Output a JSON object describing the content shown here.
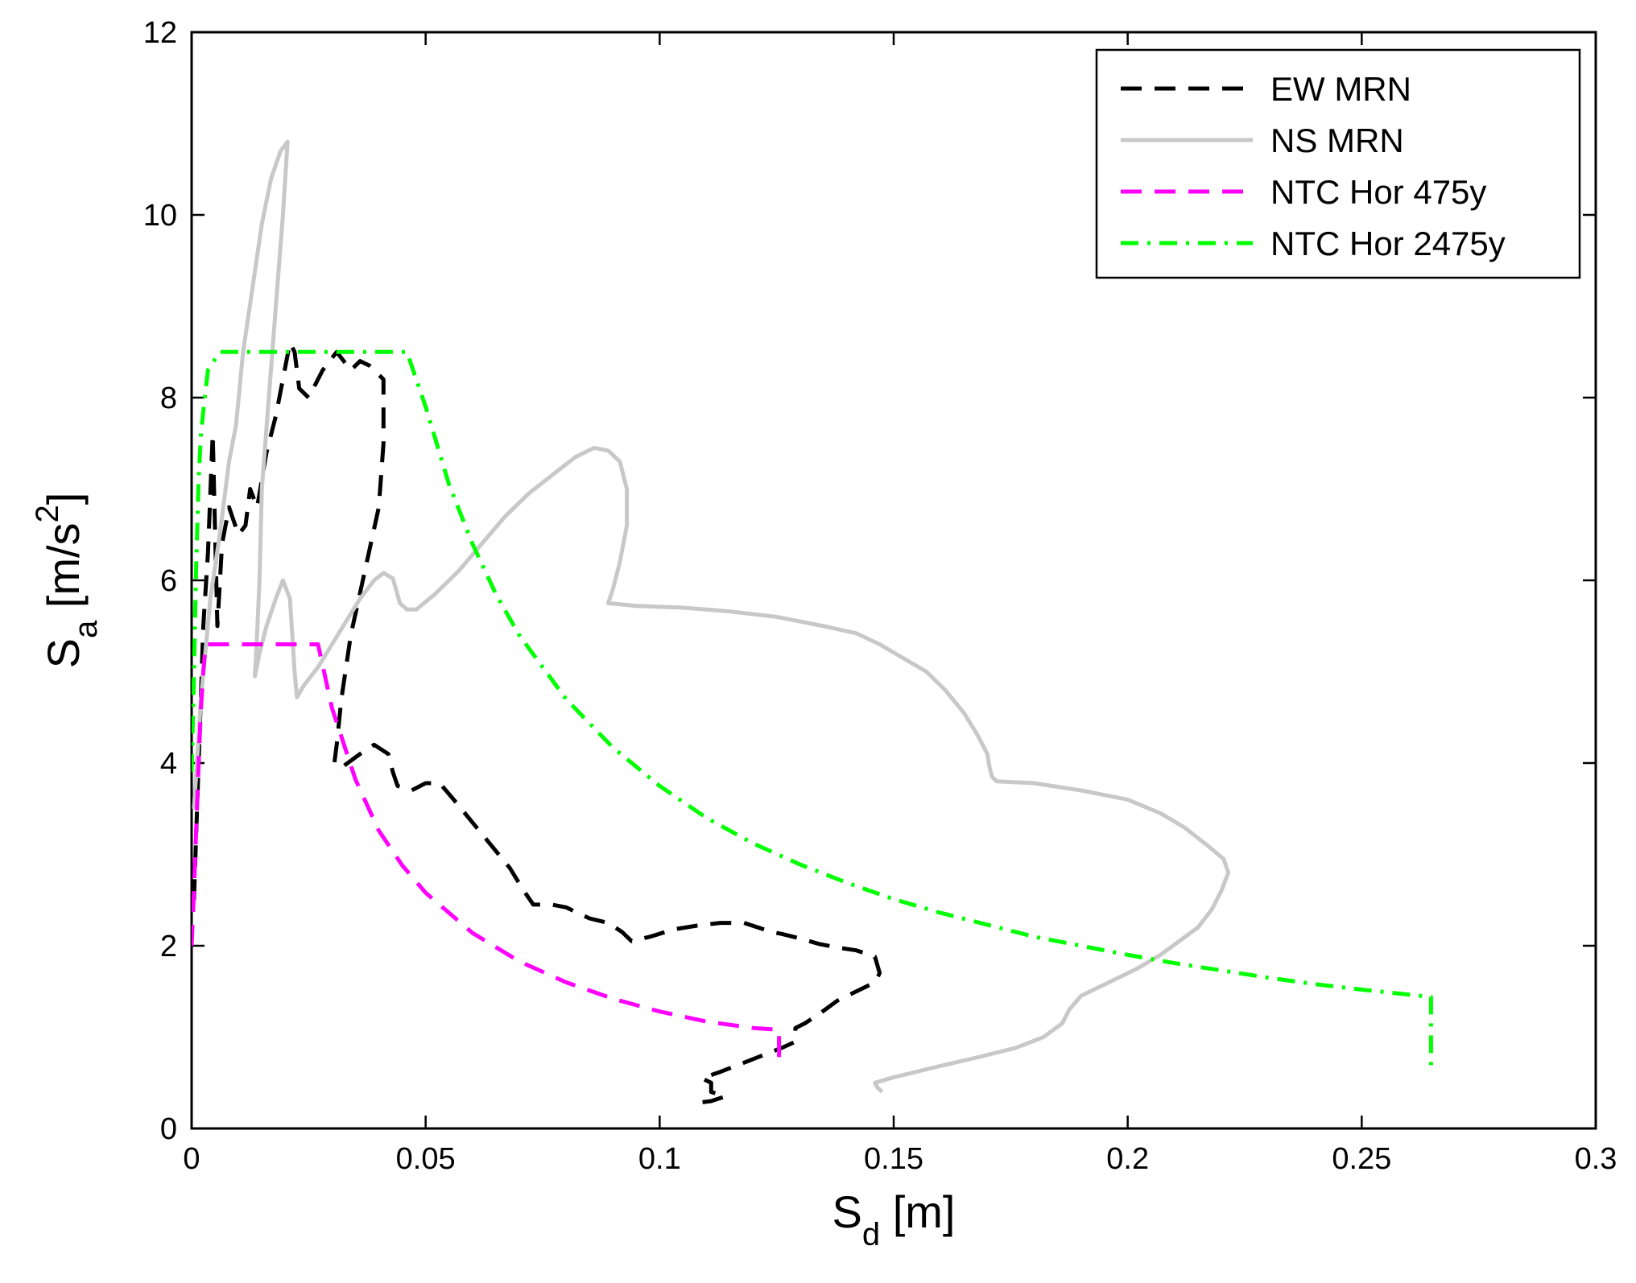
{
  "chart_data": {
    "type": "line",
    "title": "",
    "xlabel": {
      "main": "S",
      "sub": "d",
      "unit": " [m]"
    },
    "ylabel": {
      "main": "S",
      "sub": "a",
      "unit_before": " [m/s",
      "sup": "2",
      "unit_after": "]"
    },
    "xlim": [
      0,
      0.3
    ],
    "ylim": [
      0,
      12
    ],
    "x_ticks": [
      0,
      0.05,
      0.1,
      0.15,
      0.2,
      0.25,
      0.3
    ],
    "x_tick_labels": [
      "0",
      "0.05",
      "0.1",
      "0.15",
      "0.2",
      "0.25",
      "0.3"
    ],
    "y_ticks": [
      0,
      2,
      4,
      6,
      8,
      10,
      12
    ],
    "y_tick_labels": [
      "0",
      "2",
      "4",
      "6",
      "8",
      "10",
      "12"
    ],
    "grid": false,
    "legend_position": "top-right",
    "series": [
      {
        "name": "EW MRN",
        "color": "#000000",
        "style": "dashed",
        "points": [
          [
            0.0005,
            2.5
          ],
          [
            0.0015,
            4.0
          ],
          [
            0.0025,
            5.5
          ],
          [
            0.0035,
            6.3
          ],
          [
            0.0045,
            7.6
          ],
          [
            0.0055,
            5.5
          ],
          [
            0.0065,
            6.4
          ],
          [
            0.008,
            6.8
          ],
          [
            0.01,
            6.5
          ],
          [
            0.0115,
            6.6
          ],
          [
            0.0125,
            7.0
          ],
          [
            0.014,
            6.8
          ],
          [
            0.016,
            7.4
          ],
          [
            0.018,
            7.8
          ],
          [
            0.021,
            8.6
          ],
          [
            0.022,
            8.5
          ],
          [
            0.023,
            8.1
          ],
          [
            0.025,
            8.0
          ],
          [
            0.028,
            8.3
          ],
          [
            0.031,
            8.5
          ],
          [
            0.034,
            8.3
          ],
          [
            0.036,
            8.4
          ],
          [
            0.038,
            8.35
          ],
          [
            0.041,
            8.2
          ],
          [
            0.041,
            7.5
          ],
          [
            0.04,
            6.8
          ],
          [
            0.037,
            6.1
          ],
          [
            0.034,
            5.4
          ],
          [
            0.032,
            4.7
          ],
          [
            0.031,
            4.2
          ],
          [
            0.0305,
            4.0
          ],
          [
            0.032,
            3.95
          ],
          [
            0.036,
            4.1
          ],
          [
            0.039,
            4.2
          ],
          [
            0.042,
            4.1
          ],
          [
            0.043,
            3.9
          ],
          [
            0.044,
            3.75
          ],
          [
            0.047,
            3.7
          ],
          [
            0.05,
            3.78
          ],
          [
            0.053,
            3.78
          ],
          [
            0.056,
            3.6
          ],
          [
            0.06,
            3.35
          ],
          [
            0.064,
            3.1
          ],
          [
            0.068,
            2.85
          ],
          [
            0.071,
            2.6
          ],
          [
            0.073,
            2.45
          ],
          [
            0.077,
            2.45
          ],
          [
            0.08,
            2.42
          ],
          [
            0.085,
            2.3
          ],
          [
            0.089,
            2.25
          ],
          [
            0.092,
            2.15
          ],
          [
            0.094,
            2.05
          ],
          [
            0.098,
            2.1
          ],
          [
            0.103,
            2.18
          ],
          [
            0.108,
            2.22
          ],
          [
            0.113,
            2.25
          ],
          [
            0.118,
            2.25
          ],
          [
            0.121,
            2.2
          ],
          [
            0.124,
            2.15
          ],
          [
            0.126,
            2.13
          ],
          [
            0.13,
            2.08
          ],
          [
            0.134,
            2.02
          ],
          [
            0.138,
            1.98
          ],
          [
            0.142,
            1.95
          ],
          [
            0.146,
            1.88
          ],
          [
            0.147,
            1.7
          ],
          [
            0.146,
            1.6
          ],
          [
            0.142,
            1.5
          ],
          [
            0.138,
            1.4
          ],
          [
            0.134,
            1.25
          ],
          [
            0.131,
            1.15
          ],
          [
            0.129,
            1.1
          ],
          [
            0.129,
            0.95
          ],
          [
            0.126,
            0.88
          ],
          [
            0.122,
            0.8
          ],
          [
            0.118,
            0.72
          ],
          [
            0.113,
            0.62
          ],
          [
            0.109,
            0.55
          ],
          [
            0.111,
            0.5
          ],
          [
            0.111,
            0.4
          ],
          [
            0.114,
            0.35
          ],
          [
            0.111,
            0.3
          ],
          [
            0.108,
            0.28
          ]
        ]
      },
      {
        "name": "NS MRN",
        "color": "#c8c8c8",
        "style": "solid",
        "points": [
          [
            0.0005,
            3.5
          ],
          [
            0.002,
            4.7
          ],
          [
            0.004,
            5.8
          ],
          [
            0.006,
            6.5
          ],
          [
            0.008,
            7.3
          ],
          [
            0.0095,
            7.7
          ],
          [
            0.011,
            8.5
          ],
          [
            0.013,
            9.2
          ],
          [
            0.015,
            9.9
          ],
          [
            0.017,
            10.4
          ],
          [
            0.019,
            10.7
          ],
          [
            0.0205,
            10.8
          ],
          [
            0.0195,
            10.0
          ],
          [
            0.018,
            9.0
          ],
          [
            0.0165,
            8.0
          ],
          [
            0.015,
            7.0
          ],
          [
            0.0145,
            6.0
          ],
          [
            0.0138,
            5.2
          ],
          [
            0.0135,
            4.95
          ],
          [
            0.0145,
            5.2
          ],
          [
            0.016,
            5.5
          ],
          [
            0.018,
            5.8
          ],
          [
            0.0195,
            6.0
          ],
          [
            0.021,
            5.8
          ],
          [
            0.022,
            5.0
          ],
          [
            0.0225,
            4.72
          ],
          [
            0.024,
            4.85
          ],
          [
            0.027,
            5.05
          ],
          [
            0.03,
            5.3
          ],
          [
            0.033,
            5.55
          ],
          [
            0.036,
            5.8
          ],
          [
            0.039,
            6.0
          ],
          [
            0.041,
            6.08
          ],
          [
            0.043,
            6.02
          ],
          [
            0.0445,
            5.75
          ],
          [
            0.046,
            5.68
          ],
          [
            0.048,
            5.68
          ],
          [
            0.052,
            5.85
          ],
          [
            0.057,
            6.1
          ],
          [
            0.062,
            6.4
          ],
          [
            0.067,
            6.7
          ],
          [
            0.072,
            6.95
          ],
          [
            0.077,
            7.15
          ],
          [
            0.082,
            7.35
          ],
          [
            0.086,
            7.45
          ],
          [
            0.089,
            7.42
          ],
          [
            0.0915,
            7.3
          ],
          [
            0.093,
            7.0
          ],
          [
            0.093,
            6.6
          ],
          [
            0.0915,
            6.2
          ],
          [
            0.09,
            5.9
          ],
          [
            0.089,
            5.75
          ],
          [
            0.095,
            5.72
          ],
          [
            0.105,
            5.7
          ],
          [
            0.115,
            5.66
          ],
          [
            0.125,
            5.6
          ],
          [
            0.135,
            5.5
          ],
          [
            0.142,
            5.42
          ],
          [
            0.147,
            5.3
          ],
          [
            0.152,
            5.15
          ],
          [
            0.157,
            5.0
          ],
          [
            0.161,
            4.8
          ],
          [
            0.165,
            4.55
          ],
          [
            0.168,
            4.3
          ],
          [
            0.17,
            4.1
          ],
          [
            0.1705,
            3.95
          ],
          [
            0.171,
            3.85
          ],
          [
            0.172,
            3.8
          ],
          [
            0.18,
            3.78
          ],
          [
            0.19,
            3.7
          ],
          [
            0.2,
            3.6
          ],
          [
            0.207,
            3.45
          ],
          [
            0.212,
            3.3
          ],
          [
            0.217,
            3.1
          ],
          [
            0.2205,
            2.95
          ],
          [
            0.2215,
            2.8
          ],
          [
            0.22,
            2.6
          ],
          [
            0.218,
            2.4
          ],
          [
            0.215,
            2.2
          ],
          [
            0.211,
            2.05
          ],
          [
            0.207,
            1.9
          ],
          [
            0.202,
            1.75
          ],
          [
            0.196,
            1.6
          ],
          [
            0.19,
            1.45
          ],
          [
            0.1875,
            1.3
          ],
          [
            0.186,
            1.15
          ],
          [
            0.182,
            1.0
          ],
          [
            0.176,
            0.88
          ],
          [
            0.168,
            0.78
          ],
          [
            0.158,
            0.66
          ],
          [
            0.15,
            0.56
          ],
          [
            0.146,
            0.5
          ],
          [
            0.1465,
            0.45
          ],
          [
            0.1475,
            0.4
          ]
        ]
      },
      {
        "name": "NTC Hor 475y",
        "color": "#ff00ff",
        "style": "dashed",
        "points": [
          [
            0.0,
            2.0
          ],
          [
            0.0005,
            2.6
          ],
          [
            0.001,
            3.3
          ],
          [
            0.0015,
            4.0
          ],
          [
            0.002,
            4.6
          ],
          [
            0.0025,
            5.0
          ],
          [
            0.003,
            5.3
          ],
          [
            0.006,
            5.3
          ],
          [
            0.01,
            5.3
          ],
          [
            0.015,
            5.3
          ],
          [
            0.02,
            5.3
          ],
          [
            0.025,
            5.3
          ],
          [
            0.027,
            5.3
          ],
          [
            0.03,
            4.6
          ],
          [
            0.035,
            3.82
          ],
          [
            0.04,
            3.26
          ],
          [
            0.045,
            2.88
          ],
          [
            0.05,
            2.58
          ],
          [
            0.06,
            2.14
          ],
          [
            0.07,
            1.83
          ],
          [
            0.08,
            1.6
          ],
          [
            0.09,
            1.42
          ],
          [
            0.1,
            1.28
          ],
          [
            0.11,
            1.17
          ],
          [
            0.12,
            1.1
          ],
          [
            0.1255,
            1.08
          ],
          [
            0.1255,
            0.9
          ],
          [
            0.1255,
            0.7
          ]
        ]
      },
      {
        "name": "NTC Hor 2475y",
        "color": "#00ff00",
        "style": "dashdot",
        "points": [
          [
            0.0,
            3.9
          ],
          [
            0.0005,
            5.0
          ],
          [
            0.001,
            6.2
          ],
          [
            0.0015,
            7.1
          ],
          [
            0.002,
            7.6
          ],
          [
            0.0028,
            8.0
          ],
          [
            0.0035,
            8.3
          ],
          [
            0.006,
            8.5
          ],
          [
            0.01,
            8.5
          ],
          [
            0.02,
            8.5
          ],
          [
            0.03,
            8.5
          ],
          [
            0.04,
            8.5
          ],
          [
            0.046,
            8.5
          ],
          [
            0.05,
            7.9
          ],
          [
            0.055,
            7.05
          ],
          [
            0.06,
            6.4
          ],
          [
            0.065,
            5.85
          ],
          [
            0.07,
            5.4
          ],
          [
            0.08,
            4.7
          ],
          [
            0.09,
            4.17
          ],
          [
            0.1,
            3.75
          ],
          [
            0.11,
            3.4
          ],
          [
            0.12,
            3.12
          ],
          [
            0.13,
            2.89
          ],
          [
            0.14,
            2.69
          ],
          [
            0.15,
            2.51
          ],
          [
            0.16,
            2.36
          ],
          [
            0.17,
            2.23
          ],
          [
            0.18,
            2.1
          ],
          [
            0.19,
            2.0
          ],
          [
            0.2,
            1.9
          ],
          [
            0.21,
            1.81
          ],
          [
            0.22,
            1.73
          ],
          [
            0.23,
            1.65
          ],
          [
            0.24,
            1.58
          ],
          [
            0.25,
            1.52
          ],
          [
            0.2648,
            1.44
          ],
          [
            0.2648,
            1.1
          ],
          [
            0.2648,
            0.65
          ]
        ]
      }
    ]
  }
}
